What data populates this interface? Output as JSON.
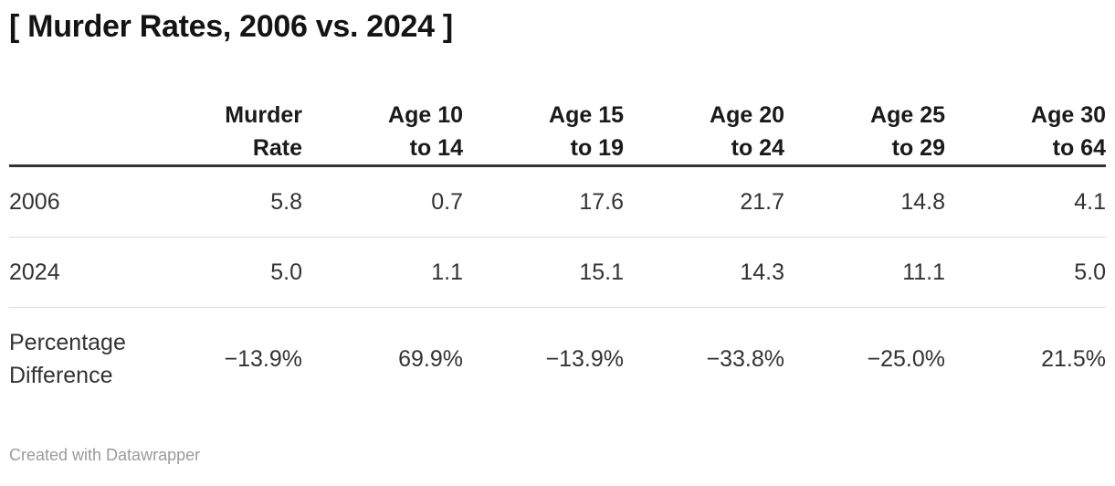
{
  "colors": {
    "background": "#ffffff",
    "title_color": "#141414",
    "header_color": "#1a1a1a",
    "body_color": "#333333",
    "header_border": "#333333",
    "row_border": "#dddddd",
    "footer_color": "#9b9b9b"
  },
  "chart_data": {
    "type": "table",
    "title": "[ Murder Rates, 2006 vs. 2024 ]",
    "columns": [
      "Murder\nRate",
      "Age 10\nto 14",
      "Age 15\nto 19",
      "Age 20\nto 24",
      "Age 25\nto 29",
      "Age 30\nto 64"
    ],
    "rows": [
      {
        "label": "2006",
        "values": [
          "5.8",
          "0.7",
          "17.6",
          "21.7",
          "14.8",
          "4.1"
        ]
      },
      {
        "label": "2024",
        "values": [
          "5.0",
          "1.1",
          "15.1",
          "14.3",
          "11.1",
          "5.0"
        ]
      },
      {
        "label": "Percentage\nDifference",
        "values": [
          "−13.9%",
          "69.9%",
          "−13.9%",
          "−33.8%",
          "−25.0%",
          "21.5%"
        ]
      }
    ],
    "attribution": "Created with Datawrapper"
  }
}
